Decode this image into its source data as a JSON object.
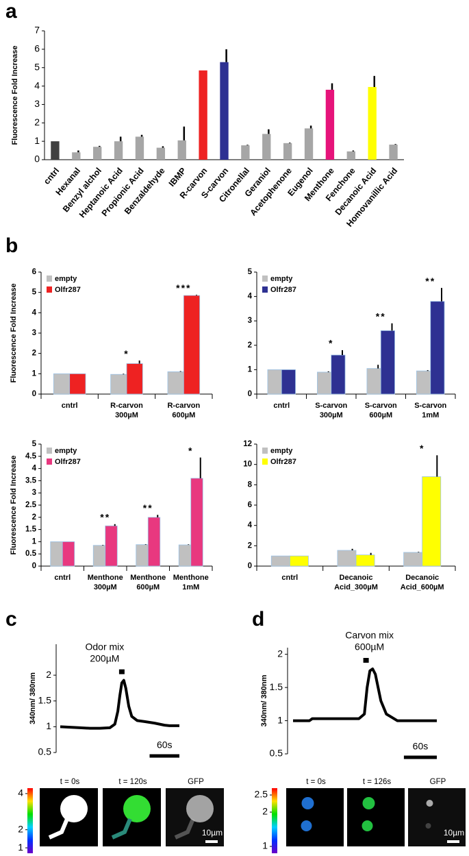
{
  "chart_data": [
    {
      "type": "bar",
      "panel": "a",
      "ylabel": "Fluorescence Fold Increase",
      "categories": [
        "cntrl",
        "Hexanal",
        "Benzyl alchol",
        "Heptanoic Acid",
        "Propionic Acid",
        "Benzaldehyde",
        "IBMP",
        "R-carvon",
        "S-carvon",
        "Citronellal",
        "Geraniol",
        "Acetophenone",
        "Eugenol",
        "Menthone",
        "Fenchone",
        "Decanoic Acid",
        "Homovanillic Acid"
      ],
      "values": [
        1.0,
        0.4,
        0.7,
        1.0,
        1.25,
        0.65,
        1.05,
        4.85,
        5.3,
        0.78,
        1.4,
        0.9,
        1.7,
        3.8,
        0.45,
        3.95,
        0.82
      ],
      "errors": [
        0,
        0.1,
        0.05,
        0.25,
        0.1,
        0.08,
        0.75,
        0,
        0.7,
        0.03,
        0.25,
        0.03,
        0.15,
        0.35,
        0.05,
        0.6,
        0.03
      ],
      "colors": [
        "#404040",
        "#a6a6a6",
        "#a6a6a6",
        "#a6a6a6",
        "#a6a6a6",
        "#a6a6a6",
        "#a6a6a6",
        "#ee2222",
        "#2e3192",
        "#a6a6a6",
        "#a6a6a6",
        "#a6a6a6",
        "#a6a6a6",
        "#e6137a",
        "#a6a6a6",
        "#ffff00",
        "#a6a6a6"
      ],
      "ylim": [
        0,
        7
      ],
      "yticks": [
        0,
        1,
        2,
        3,
        4,
        5,
        6,
        7
      ]
    },
    {
      "type": "grouped-bar",
      "panel": "b",
      "ylabel": "Fluorescence Fold Increase",
      "categories": [
        [
          "cntrl"
        ],
        [
          "R-carvon",
          "300µM"
        ],
        [
          "R-carvon",
          "600µM"
        ]
      ],
      "series": [
        {
          "name": "empty",
          "color": "#c0c0c0",
          "values": [
            1.0,
            0.97,
            1.1
          ],
          "errors": [
            0,
            0.03,
            0.03
          ]
        },
        {
          "name": "Olfr287",
          "color": "#ee2222",
          "values": [
            1.0,
            1.5,
            4.85
          ],
          "errors": [
            0,
            0.15,
            0.03
          ]
        }
      ],
      "annotations": [
        null,
        "*",
        "***"
      ],
      "ylim": [
        0,
        6
      ],
      "yticks": [
        0,
        1,
        2,
        3,
        4,
        5,
        6
      ],
      "legend": "upper left"
    },
    {
      "type": "grouped-bar",
      "categories": [
        [
          "cntrl"
        ],
        [
          "S-carvon",
          "300µM"
        ],
        [
          "S-carvon",
          "600µM"
        ],
        [
          "S-carvon",
          "1mM"
        ]
      ],
      "series": [
        {
          "name": "empty",
          "color": "#c0c0c0",
          "values": [
            1.0,
            0.9,
            1.05,
            0.95
          ],
          "errors": [
            0,
            0.03,
            0.15,
            0.03
          ]
        },
        {
          "name": "Olfr287",
          "color": "#2e3192",
          "values": [
            1.0,
            1.6,
            2.6,
            3.8
          ],
          "errors": [
            0,
            0.2,
            0.3,
            0.55
          ]
        }
      ],
      "annotations": [
        null,
        "*",
        "**",
        "**"
      ],
      "ylim": [
        0,
        5
      ],
      "yticks": [
        0,
        1,
        2,
        3,
        4,
        5
      ],
      "legend": "upper left"
    },
    {
      "type": "grouped-bar",
      "ylabel": "Fluorescence Fold Increase",
      "categories": [
        [
          "cntrl"
        ],
        [
          "Menthone",
          "300µM"
        ],
        [
          "Menthone",
          "600µM"
        ],
        [
          "Menthone",
          "1mM"
        ]
      ],
      "series": [
        {
          "name": "empty",
          "color": "#c0c0c0",
          "values": [
            1.0,
            0.85,
            0.88,
            0.87
          ],
          "errors": [
            0,
            0.02,
            0.02,
            0.02
          ]
        },
        {
          "name": "Olfr287",
          "color": "#e8387f",
          "values": [
            1.0,
            1.65,
            2.0,
            3.6
          ],
          "errors": [
            0,
            0.07,
            0.1,
            0.85
          ]
        }
      ],
      "annotations": [
        null,
        "**",
        "**",
        "*"
      ],
      "ylim": [
        0,
        5
      ],
      "yticks": [
        0,
        0.5,
        1,
        1.5,
        2,
        2.5,
        3,
        3.5,
        4,
        4.5,
        5
      ],
      "legend": "upper left"
    },
    {
      "type": "grouped-bar",
      "categories": [
        [
          "cntrl"
        ],
        [
          "Decanoic",
          "Acid_300µM"
        ],
        [
          "Decanoic",
          "Acid_600µM"
        ]
      ],
      "series": [
        {
          "name": "empty",
          "color": "#c0c0c0",
          "values": [
            1.0,
            1.55,
            1.35
          ],
          "errors": [
            0,
            0.15,
            0.05
          ]
        },
        {
          "name": "Olfr287",
          "color": "#ffff00",
          "values": [
            1.0,
            1.1,
            8.8
          ],
          "errors": [
            0,
            0.2,
            2.1
          ]
        }
      ],
      "annotations": [
        null,
        null,
        "*"
      ],
      "ylim": [
        0,
        12
      ],
      "yticks": [
        0,
        2,
        4,
        6,
        8,
        10,
        12
      ],
      "legend": "upper left"
    },
    {
      "type": "line",
      "panel": "c",
      "ylabel": "340nm/ 380nm",
      "color": "#000000",
      "x": [
        0,
        20,
        40,
        60,
        80,
        100,
        110,
        116,
        120,
        124,
        128,
        132,
        138,
        144,
        155,
        170,
        190,
        200,
        210,
        220,
        240
      ],
      "values": [
        1.0,
        0.99,
        0.98,
        0.97,
        0.97,
        0.98,
        1.05,
        1.3,
        1.6,
        1.85,
        1.9,
        1.75,
        1.4,
        1.2,
        1.12,
        1.1,
        1.07,
        1.05,
        1.03,
        1.02,
        1.02
      ],
      "xlim": [
        0,
        240
      ],
      "ylim": [
        0.5,
        2.6
      ],
      "yticks": [
        0.5,
        1,
        1.5,
        2
      ],
      "stimulus": {
        "x": 124,
        "label": [
          "Odor mix",
          "200µM"
        ]
      },
      "scale_bar": {
        "value": 60,
        "label": "60s"
      }
    },
    {
      "type": "line",
      "panel": "d",
      "ylabel": "340nm/ 380nm",
      "color": "#000000",
      "x": [
        0,
        30,
        35,
        80,
        120,
        130,
        135,
        140,
        145,
        150,
        160,
        170,
        180,
        190,
        262
      ],
      "values": [
        1.0,
        1.0,
        1.03,
        1.03,
        1.03,
        1.1,
        1.5,
        1.75,
        1.78,
        1.7,
        1.3,
        1.1,
        1.05,
        1.0,
        1.0
      ],
      "xlim": [
        0,
        262
      ],
      "ylim": [
        0.5,
        2.1
      ],
      "yticks": [
        0.5,
        1,
        1.5,
        2
      ],
      "stimulus": {
        "x": 133,
        "label": [
          "Carvon mix",
          "600µM"
        ]
      },
      "scale_bar": {
        "value": 60,
        "label": "60s"
      }
    },
    {
      "type": "colorbar",
      "ylim": [
        0.7,
        4.3
      ],
      "yticks": [
        1,
        2,
        4
      ],
      "image_labels": [
        "t = 0s",
        "t = 120s",
        "GFP"
      ],
      "scale_label": "10µm"
    },
    {
      "type": "colorbar",
      "ylim": [
        0.8,
        2.7
      ],
      "yticks": [
        1,
        2,
        2.5
      ],
      "image_labels": [
        "t = 0s",
        "t = 126s",
        "GFP"
      ],
      "scale_label": "10µm"
    }
  ]
}
